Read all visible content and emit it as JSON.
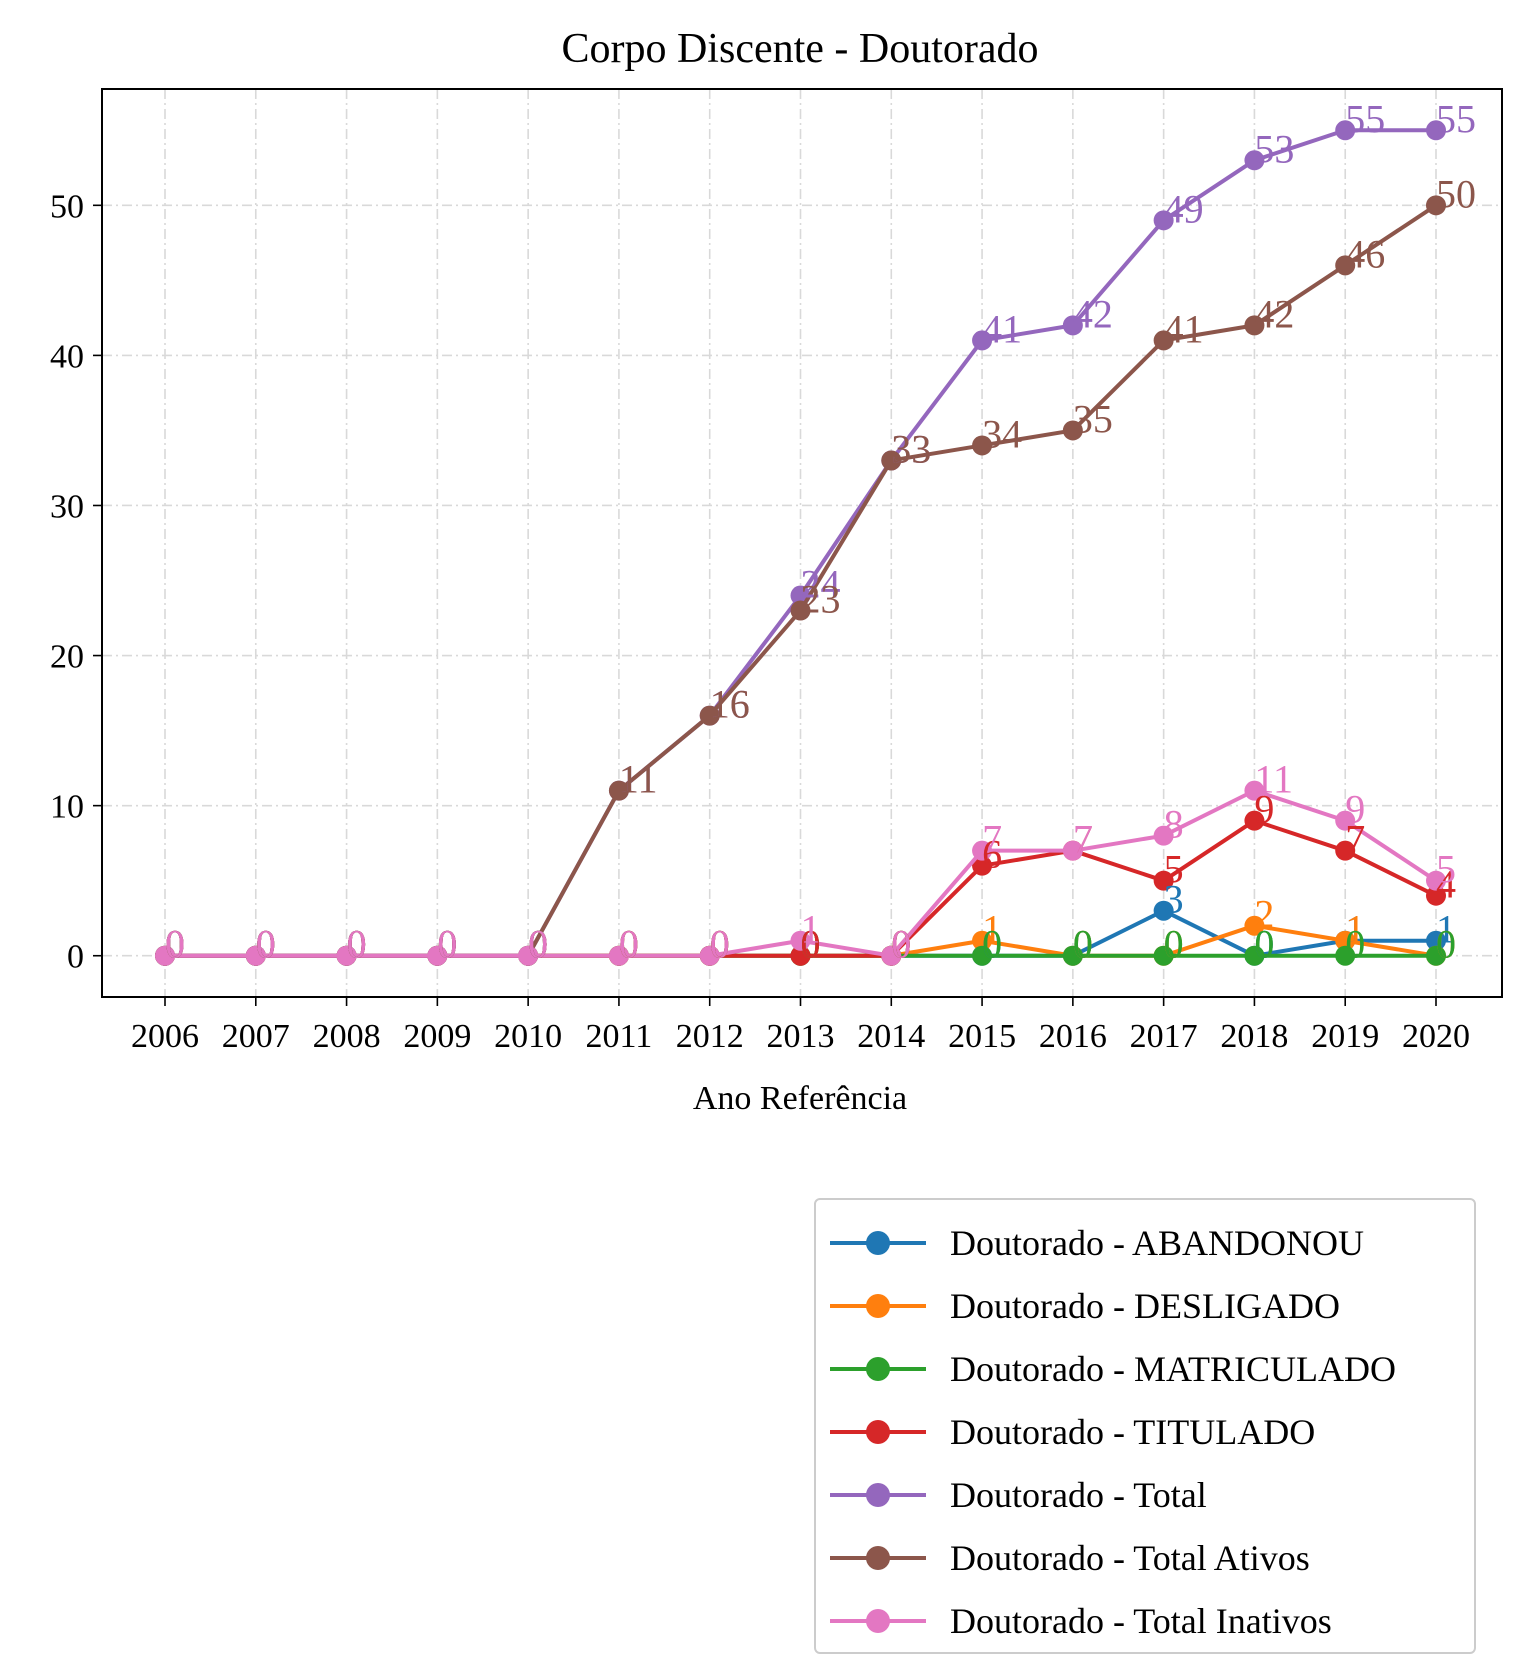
{
  "chart_data": {
    "type": "line",
    "title": "Corpo Discente - Doutorado",
    "xlabel": "Ano Referência",
    "ylabel": "",
    "x": [
      "2006",
      "2007",
      "2008",
      "2009",
      "2010",
      "2011",
      "2012",
      "2013",
      "2014",
      "2015",
      "2016",
      "2017",
      "2018",
      "2019",
      "2020"
    ],
    "ylim": [
      -2.75,
      57.75
    ],
    "yticks": [
      0,
      10,
      20,
      30,
      40,
      50
    ],
    "grid": true,
    "legend_position": "bottom-right, outside plot",
    "series": [
      {
        "name": "Doutorado - ABANDONOU",
        "color": "#1f77b4",
        "values": [
          0,
          0,
          0,
          0,
          0,
          0,
          0,
          0,
          0,
          0,
          0,
          3,
          0,
          1,
          1
        ]
      },
      {
        "name": "Doutorado - DESLIGADO",
        "color": "#ff7f0e",
        "values": [
          0,
          0,
          0,
          0,
          0,
          0,
          0,
          0,
          0,
          1,
          0,
          0,
          2,
          1,
          0
        ]
      },
      {
        "name": "Doutorado - MATRICULADO",
        "color": "#2ca02c",
        "values": [
          0,
          0,
          0,
          0,
          0,
          0,
          0,
          0,
          0,
          0,
          0,
          0,
          0,
          0,
          0
        ]
      },
      {
        "name": "Doutorado - TITULADO",
        "color": "#d62728",
        "values": [
          0,
          0,
          0,
          0,
          0,
          0,
          0,
          0,
          0,
          6,
          7,
          5,
          9,
          7,
          4
        ]
      },
      {
        "name": "Doutorado - Total",
        "color": "#9467bd",
        "values": [
          0,
          0,
          0,
          0,
          0,
          11,
          16,
          24,
          33,
          41,
          42,
          49,
          53,
          55,
          55
        ]
      },
      {
        "name": "Doutorado - Total Ativos",
        "color": "#8c564b",
        "values": [
          0,
          0,
          0,
          0,
          0,
          11,
          16,
          23,
          33,
          34,
          35,
          41,
          42,
          46,
          50
        ]
      },
      {
        "name": "Doutorado - Total Inativos",
        "color": "#e377c2",
        "values": [
          0,
          0,
          0,
          0,
          0,
          0,
          0,
          1,
          0,
          7,
          7,
          8,
          11,
          9,
          5
        ]
      }
    ]
  }
}
